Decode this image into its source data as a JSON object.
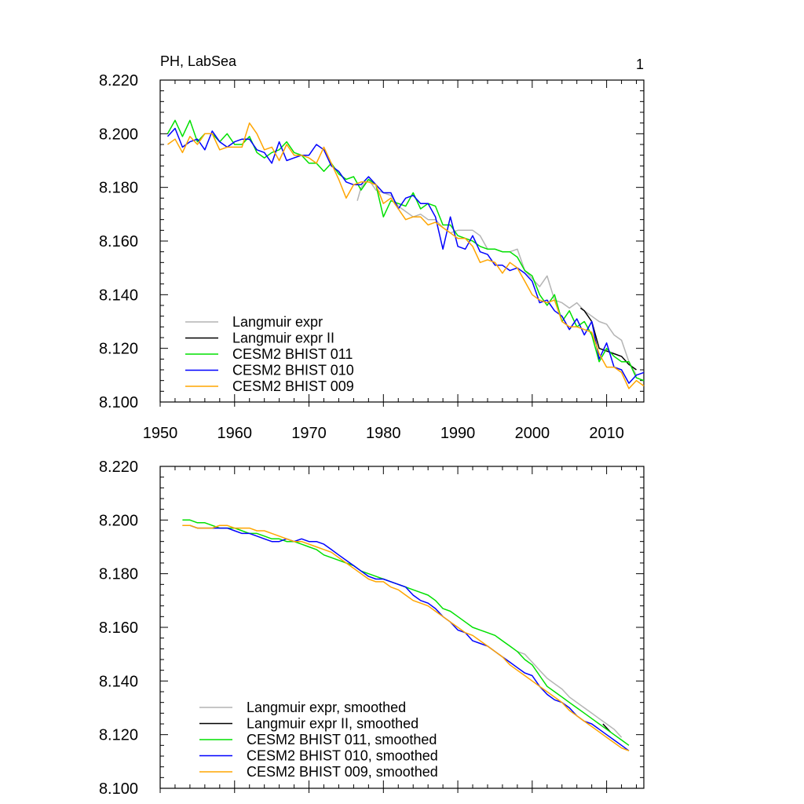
{
  "chart_data": [
    {
      "type": "line",
      "title": "PH, LabSea",
      "corner_label": "1",
      "xlim": [
        1950,
        2015
      ],
      "ylim": [
        8.1,
        8.22
      ],
      "xticks": [
        1950,
        1960,
        1970,
        1980,
        1990,
        2000,
        2010
      ],
      "yticks": [
        8.1,
        8.12,
        8.14,
        8.16,
        8.18,
        8.2,
        8.22
      ],
      "ytick_labels": [
        "8.100",
        "8.120",
        "8.140",
        "8.160",
        "8.180",
        "8.200",
        "8.220"
      ],
      "xtick_labels": [
        "1950",
        "1960",
        "1970",
        "1980",
        "1990",
        "2000",
        "2010"
      ],
      "legend_position": "bottom-left",
      "series": [
        {
          "name": "Langmuir expr",
          "color": "#b4b4b4",
          "x": [
            1976.5,
            1977,
            1978,
            1979,
            1980,
            1981,
            1982,
            1983,
            1984,
            1985,
            1986,
            1987,
            1988,
            1989,
            1990,
            1991,
            1992,
            1993,
            1994,
            1995,
            1996,
            1997,
            1998,
            1999,
            2000,
            2001,
            2002,
            2003,
            2004,
            2005,
            2006,
            2007,
            2008,
            2009,
            2010,
            2011,
            2012,
            2013,
            2014
          ],
          "y": [
            8.175,
            8.18,
            8.183,
            8.179,
            8.178,
            8.177,
            8.173,
            8.171,
            8.169,
            8.17,
            8.168,
            8.168,
            8.165,
            8.163,
            8.164,
            8.164,
            8.164,
            8.162,
            8.157,
            8.157,
            8.156,
            8.156,
            8.157,
            8.149,
            8.146,
            8.143,
            8.147,
            8.138,
            8.137,
            8.135,
            8.137,
            8.134,
            8.132,
            8.13,
            8.129,
            8.125,
            8.123,
            8.115,
            8.11
          ]
        },
        {
          "name": "Langmuir expr II",
          "color": "#000000",
          "x": [
            2006.5,
            2007,
            2008,
            2009,
            2010,
            2011,
            2012,
            2013,
            2014
          ],
          "y": [
            8.135,
            8.134,
            8.13,
            8.12,
            8.119,
            8.118,
            8.117,
            8.114,
            8.112
          ]
        },
        {
          "name": "CESM2 BHIST 011",
          "color": "#00e000",
          "x": [
            1951,
            1952,
            1953,
            1954,
            1955,
            1956,
            1957,
            1958,
            1959,
            1960,
            1961,
            1962,
            1963,
            1964,
            1965,
            1966,
            1967,
            1968,
            1969,
            1970,
            1971,
            1972,
            1973,
            1974,
            1975,
            1976,
            1977,
            1978,
            1979,
            1980,
            1981,
            1982,
            1983,
            1984,
            1985,
            1986,
            1987,
            1988,
            1989,
            1990,
            1991,
            1992,
            1993,
            1994,
            1995,
            1996,
            1997,
            1998,
            1999,
            2000,
            2001,
            2002,
            2003,
            2004,
            2005,
            2006,
            2007,
            2008,
            2009,
            2010,
            2011,
            2012,
            2013,
            2014,
            2015
          ],
          "y": [
            8.2,
            8.205,
            8.199,
            8.205,
            8.197,
            8.2,
            8.2,
            8.197,
            8.2,
            8.196,
            8.196,
            8.199,
            8.193,
            8.191,
            8.193,
            8.194,
            8.197,
            8.193,
            8.192,
            8.189,
            8.189,
            8.186,
            8.189,
            8.185,
            8.183,
            8.184,
            8.179,
            8.183,
            8.181,
            8.169,
            8.175,
            8.174,
            8.173,
            8.178,
            8.172,
            8.174,
            8.173,
            8.166,
            8.166,
            8.162,
            8.161,
            8.16,
            8.158,
            8.157,
            8.157,
            8.156,
            8.156,
            8.154,
            8.149,
            8.147,
            8.14,
            8.136,
            8.14,
            8.13,
            8.134,
            8.128,
            8.13,
            8.125,
            8.115,
            8.12,
            8.117,
            8.115,
            8.115,
            8.109,
            8.108
          ]
        },
        {
          "name": "CESM2 BHIST 010",
          "color": "#0000ff",
          "x": [
            1951,
            1952,
            1953,
            1954,
            1955,
            1956,
            1957,
            1958,
            1959,
            1960,
            1961,
            1962,
            1963,
            1964,
            1965,
            1966,
            1967,
            1968,
            1969,
            1970,
            1971,
            1972,
            1973,
            1974,
            1975,
            1976,
            1977,
            1978,
            1979,
            1980,
            1981,
            1982,
            1983,
            1984,
            1985,
            1986,
            1987,
            1988,
            1989,
            1990,
            1991,
            1992,
            1993,
            1994,
            1995,
            1996,
            1997,
            1998,
            1999,
            2000,
            2001,
            2002,
            2003,
            2004,
            2005,
            2006,
            2007,
            2008,
            2009,
            2010,
            2011,
            2012,
            2013,
            2014,
            2015
          ],
          "y": [
            8.199,
            8.202,
            8.195,
            8.197,
            8.198,
            8.194,
            8.201,
            8.197,
            8.195,
            8.197,
            8.198,
            8.198,
            8.194,
            8.193,
            8.189,
            8.197,
            8.19,
            8.191,
            8.192,
            8.192,
            8.196,
            8.194,
            8.188,
            8.186,
            8.182,
            8.181,
            8.181,
            8.184,
            8.181,
            8.178,
            8.178,
            8.172,
            8.176,
            8.177,
            8.174,
            8.174,
            8.169,
            8.157,
            8.169,
            8.158,
            8.157,
            8.162,
            8.156,
            8.155,
            8.151,
            8.151,
            8.149,
            8.15,
            8.148,
            8.145,
            8.137,
            8.138,
            8.134,
            8.132,
            8.127,
            8.131,
            8.125,
            8.13,
            8.116,
            8.122,
            8.113,
            8.112,
            8.107,
            8.11,
            8.111
          ]
        },
        {
          "name": "CESM2 BHIST 009",
          "color": "#ffa500",
          "x": [
            1951,
            1952,
            1953,
            1954,
            1955,
            1956,
            1957,
            1958,
            1959,
            1960,
            1961,
            1962,
            1963,
            1964,
            1965,
            1966,
            1967,
            1968,
            1969,
            1970,
            1971,
            1972,
            1973,
            1974,
            1975,
            1976,
            1977,
            1978,
            1979,
            1980,
            1981,
            1982,
            1983,
            1984,
            1985,
            1986,
            1987,
            1988,
            1989,
            1990,
            1991,
            1992,
            1993,
            1994,
            1995,
            1996,
            1997,
            1998,
            1999,
            2000,
            2001,
            2002,
            2003,
            2004,
            2005,
            2006,
            2007,
            2008,
            2009,
            2010,
            2011,
            2012,
            2013,
            2014,
            2015
          ],
          "y": [
            8.196,
            8.198,
            8.193,
            8.199,
            8.196,
            8.2,
            8.2,
            8.194,
            8.195,
            8.195,
            8.195,
            8.204,
            8.2,
            8.194,
            8.195,
            8.19,
            8.196,
            8.192,
            8.192,
            8.191,
            8.189,
            8.195,
            8.189,
            8.183,
            8.176,
            8.181,
            8.182,
            8.182,
            8.181,
            8.174,
            8.176,
            8.172,
            8.168,
            8.169,
            8.169,
            8.166,
            8.167,
            8.165,
            8.163,
            8.161,
            8.161,
            8.158,
            8.152,
            8.153,
            8.152,
            8.148,
            8.152,
            8.15,
            8.145,
            8.14,
            8.138,
            8.137,
            8.138,
            8.13,
            8.128,
            8.128,
            8.127,
            8.126,
            8.118,
            8.113,
            8.113,
            8.111,
            8.105,
            8.108,
            8.106
          ]
        }
      ]
    },
    {
      "type": "line",
      "xlim": [
        1950,
        2015
      ],
      "ylim": [
        8.1,
        8.22
      ],
      "xticks": [
        1950,
        1960,
        1970,
        1980,
        1990,
        2000,
        2010
      ],
      "yticks": [
        8.1,
        8.12,
        8.14,
        8.16,
        8.18,
        8.2,
        8.22
      ],
      "ytick_labels": [
        "8.100",
        "8.120",
        "8.140",
        "8.160",
        "8.180",
        "8.200",
        "8.220"
      ],
      "legend_position": "bottom-left",
      "series": [
        {
          "name": "Langmuir expr, smoothed",
          "color": "#b4b4b4",
          "x": [
            1998,
            1999,
            2000,
            2001,
            2002,
            2003,
            2004,
            2005,
            2006,
            2007,
            2008,
            2009,
            2010,
            2011,
            2012
          ],
          "y": [
            8.151,
            8.15,
            8.147,
            8.144,
            8.141,
            8.139,
            8.137,
            8.134,
            8.132,
            8.13,
            8.128,
            8.126,
            8.124,
            8.122,
            8.119
          ]
        },
        {
          "name": "Langmuir expr II, smoothed",
          "color": "#000000",
          "x": [
            2009.5,
            2010.5
          ],
          "y": [
            8.124,
            8.121
          ]
        },
        {
          "name": "CESM2 BHIST 011, smoothed",
          "color": "#00e000",
          "x": [
            1953,
            1954,
            1955,
            1956,
            1957,
            1958,
            1959,
            1960,
            1961,
            1962,
            1963,
            1964,
            1965,
            1966,
            1967,
            1968,
            1969,
            1970,
            1971,
            1972,
            1973,
            1974,
            1975,
            1976,
            1977,
            1978,
            1979,
            1980,
            1981,
            1982,
            1983,
            1984,
            1985,
            1986,
            1987,
            1988,
            1989,
            1990,
            1991,
            1992,
            1993,
            1994,
            1995,
            1996,
            1997,
            1998,
            1999,
            2000,
            2001,
            2002,
            2003,
            2004,
            2005,
            2006,
            2007,
            2008,
            2009,
            2010,
            2011,
            2012,
            2013
          ],
          "y": [
            8.2,
            8.2,
            8.199,
            8.199,
            8.198,
            8.197,
            8.197,
            8.197,
            8.196,
            8.195,
            8.195,
            8.194,
            8.193,
            8.193,
            8.192,
            8.192,
            8.191,
            8.19,
            8.189,
            8.187,
            8.186,
            8.185,
            8.184,
            8.183,
            8.181,
            8.18,
            8.179,
            8.178,
            8.177,
            8.176,
            8.175,
            8.174,
            8.173,
            8.172,
            8.17,
            8.167,
            8.166,
            8.164,
            8.162,
            8.16,
            8.159,
            8.158,
            8.157,
            8.155,
            8.153,
            8.151,
            8.148,
            8.146,
            8.142,
            8.138,
            8.136,
            8.134,
            8.132,
            8.13,
            8.128,
            8.126,
            8.124,
            8.122,
            8.12,
            8.118,
            8.116
          ]
        },
        {
          "name": "CESM2 BHIST 010, smoothed",
          "color": "#0000ff",
          "x": [
            1953,
            1954,
            1955,
            1956,
            1957,
            1958,
            1959,
            1960,
            1961,
            1962,
            1963,
            1964,
            1965,
            1966,
            1967,
            1968,
            1969,
            1970,
            1971,
            1972,
            1973,
            1974,
            1975,
            1976,
            1977,
            1978,
            1979,
            1980,
            1981,
            1982,
            1983,
            1984,
            1985,
            1986,
            1987,
            1988,
            1989,
            1990,
            1991,
            1992,
            1993,
            1994,
            1995,
            1996,
            1997,
            1998,
            1999,
            2000,
            2001,
            2002,
            2003,
            2004,
            2005,
            2006,
            2007,
            2008,
            2009,
            2010,
            2011,
            2012,
            2013
          ],
          "y": [
            8.198,
            8.198,
            8.197,
            8.197,
            8.197,
            8.197,
            8.197,
            8.196,
            8.195,
            8.195,
            8.194,
            8.193,
            8.192,
            8.192,
            8.193,
            8.192,
            8.193,
            8.192,
            8.192,
            8.191,
            8.189,
            8.187,
            8.185,
            8.183,
            8.181,
            8.179,
            8.178,
            8.178,
            8.177,
            8.176,
            8.175,
            8.172,
            8.17,
            8.169,
            8.167,
            8.164,
            8.162,
            8.159,
            8.158,
            8.155,
            8.154,
            8.153,
            8.151,
            8.149,
            8.147,
            8.145,
            8.143,
            8.142,
            8.138,
            8.135,
            8.133,
            8.132,
            8.13,
            8.127,
            8.125,
            8.124,
            8.122,
            8.12,
            8.118,
            8.116,
            8.114
          ]
        },
        {
          "name": "CESM2 BHIST 009, smoothed",
          "color": "#ffa500",
          "x": [
            1953,
            1954,
            1955,
            1956,
            1957,
            1958,
            1959,
            1960,
            1961,
            1962,
            1963,
            1964,
            1965,
            1966,
            1967,
            1968,
            1969,
            1970,
            1971,
            1972,
            1973,
            1974,
            1975,
            1976,
            1977,
            1978,
            1979,
            1980,
            1981,
            1982,
            1983,
            1984,
            1985,
            1986,
            1987,
            1988,
            1989,
            1990,
            1991,
            1992,
            1993,
            1994,
            1995,
            1996,
            1997,
            1998,
            1999,
            2000,
            2001,
            2002,
            2003,
            2004,
            2005,
            2006,
            2007,
            2008,
            2009,
            2010,
            2011,
            2012,
            2013
          ],
          "y": [
            8.198,
            8.198,
            8.197,
            8.197,
            8.197,
            8.198,
            8.198,
            8.197,
            8.197,
            8.197,
            8.196,
            8.196,
            8.195,
            8.194,
            8.193,
            8.192,
            8.192,
            8.191,
            8.19,
            8.189,
            8.188,
            8.186,
            8.184,
            8.182,
            8.18,
            8.178,
            8.177,
            8.177,
            8.175,
            8.174,
            8.172,
            8.17,
            8.169,
            8.168,
            8.166,
            8.164,
            8.162,
            8.16,
            8.158,
            8.157,
            8.155,
            8.153,
            8.151,
            8.149,
            8.146,
            8.144,
            8.142,
            8.14,
            8.138,
            8.136,
            8.134,
            8.132,
            8.129,
            8.127,
            8.125,
            8.123,
            8.121,
            8.119,
            8.117,
            8.115,
            8.114
          ]
        }
      ]
    }
  ]
}
